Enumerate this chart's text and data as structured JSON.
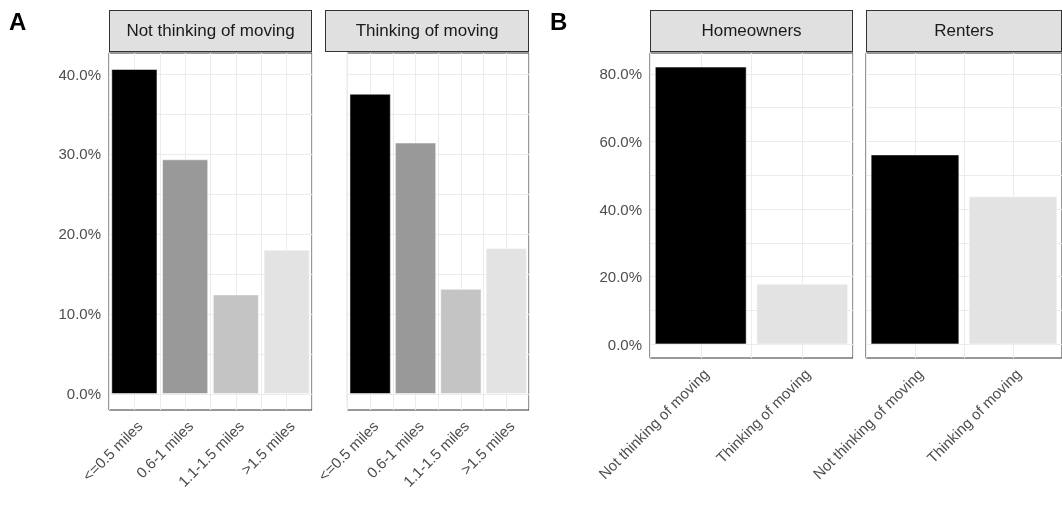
{
  "chart_data": [
    {
      "type": "bar",
      "title": "Not thinking of moving",
      "annotations": [
        "A"
      ],
      "categories": [
        "<=0.5 miles",
        "0.6-1 miles",
        "1.1-1.5 miles",
        ">1.5 miles"
      ],
      "values": [
        40.6,
        29.3,
        12.4,
        18.0
      ],
      "colors": [
        "#000000",
        "#999999",
        "#c4c4c4",
        "#e3e3e3"
      ],
      "ylim": [
        -2.03,
        42.63
      ],
      "yticks": [
        {
          "value": 0,
          "label": "0.0%"
        },
        {
          "value": 5,
          "label": null
        },
        {
          "value": 10,
          "label": "10.0%"
        },
        {
          "value": 15,
          "label": null
        },
        {
          "value": 20,
          "label": "20.0%"
        },
        {
          "value": 25,
          "label": null
        },
        {
          "value": 30,
          "label": "30.0%"
        },
        {
          "value": 35,
          "label": null
        },
        {
          "value": 40,
          "label": "40.0%"
        }
      ],
      "grid": true
    },
    {
      "type": "bar",
      "title": "Thinking of moving",
      "categories": [
        "<=0.5 miles",
        "0.6-1 miles",
        "1.1-1.5 miles",
        ">1.5 miles"
      ],
      "values": [
        37.5,
        31.4,
        13.1,
        18.2
      ],
      "colors": [
        "#000000",
        "#999999",
        "#c4c4c4",
        "#e3e3e3"
      ],
      "ylim": [
        -2.03,
        42.63
      ],
      "yticks": [
        0,
        5,
        10,
        15,
        20,
        25,
        30,
        35,
        40
      ],
      "grid": true,
      "tick_labels": "x"
    },
    {
      "type": "bar",
      "title": "Homeowners",
      "annotations": [
        "B"
      ],
      "categories": [
        "Not thinking of moving",
        "Thinking of moving"
      ],
      "values": [
        82.1,
        17.8
      ],
      "colors": [
        "#000000",
        "#e3e3e3"
      ],
      "ylim": [
        -4.1,
        86.2
      ],
      "yticks": [
        {
          "value": 0,
          "label": "0.0%"
        },
        {
          "value": 10,
          "label": null
        },
        {
          "value": 20,
          "label": "20.0%"
        },
        {
          "value": 30,
          "label": null
        },
        {
          "value": 40,
          "label": "40.0%"
        },
        {
          "value": 50,
          "label": null
        },
        {
          "value": 60,
          "label": "60.0%"
        },
        {
          "value": 70,
          "label": null
        },
        {
          "value": 80,
          "label": "80.0%"
        }
      ],
      "grid": true
    },
    {
      "type": "bar",
      "title": "Renters",
      "categories": [
        "Not thinking of moving",
        "Thinking of moving"
      ],
      "values": [
        56.1,
        43.7
      ],
      "colors": [
        "#000000",
        "#e3e3e3"
      ],
      "ylim": [
        -4.1,
        86.2
      ],
      "yticks": [
        0,
        10,
        20,
        30,
        40,
        50,
        60,
        70,
        80
      ],
      "grid": true,
      "tick_labels": "x"
    }
  ]
}
